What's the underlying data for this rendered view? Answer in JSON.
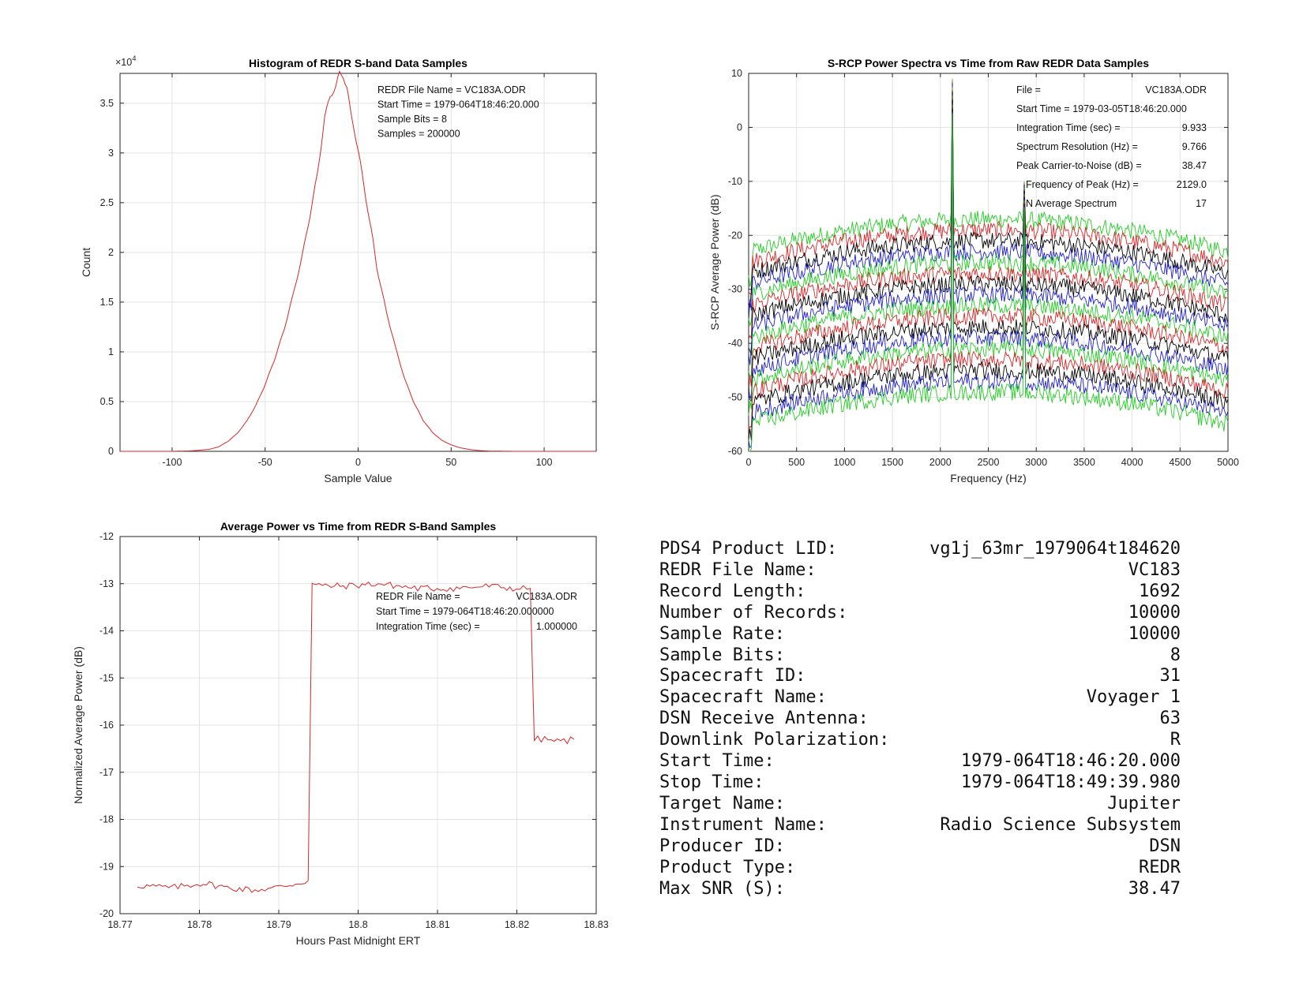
{
  "chart_data": [
    {
      "type": "line",
      "title": "Histogram of REDR S-band Data Samples",
      "xlabel": "Sample Value",
      "ylabel": "Count",
      "y_multiplier_label": "×10",
      "y_multiplier_exp": "4",
      "xlim": [
        -128,
        128
      ],
      "ylim": [
        0,
        38000
      ],
      "x_ticks": [
        -100,
        -50,
        0,
        50,
        100
      ],
      "y_ticks": [
        0,
        5000,
        10000,
        15000,
        20000,
        25000,
        30000,
        35000
      ],
      "y_tick_labels": [
        "0",
        "0.5",
        "1",
        "1.5",
        "2",
        "2.5",
        "3",
        "3.5"
      ],
      "grid": true,
      "series": [
        {
          "color": "#d62728",
          "x": [
            -128,
            -100,
            -90,
            -80,
            -75,
            -70,
            -65,
            -60,
            -55,
            -50,
            -45,
            -40,
            -35,
            -30,
            -25,
            -22,
            -20,
            -18,
            -15,
            -12,
            -10,
            -8,
            -6,
            -4,
            -2,
            0,
            2,
            5,
            8,
            10,
            15,
            20,
            25,
            30,
            35,
            40,
            45,
            50,
            55,
            60,
            65,
            70,
            80,
            90,
            128
          ],
          "y": [
            0,
            0,
            40,
            200,
            450,
            1000,
            1800,
            3000,
            4600,
            6700,
            9200,
            12100,
            15700,
            19700,
            24600,
            27800,
            30600,
            33500,
            35800,
            36600,
            38000,
            37800,
            36500,
            34000,
            32300,
            30300,
            28000,
            24500,
            21200,
            18500,
            14200,
            10500,
            7300,
            4900,
            3100,
            1900,
            1100,
            650,
            350,
            180,
            80,
            30,
            5,
            0,
            0
          ]
        }
      ],
      "annotations": [
        "REDR File Name = VC183A.ODR",
        "Start Time = 1979-064T18:46:20.000",
        "Sample Bits = 8",
        "Samples = 200000"
      ]
    },
    {
      "type": "line",
      "title": "S-RCP Power Spectra vs Time from Raw REDR Data Samples",
      "xlabel": "Frequency (Hz)",
      "ylabel": "S-RCP Average Power (dB)",
      "xlim": [
        0,
        5000
      ],
      "ylim": [
        -60,
        10
      ],
      "x_ticks": [
        0,
        500,
        1000,
        1500,
        2000,
        2500,
        3000,
        3500,
        4000,
        4500,
        5000
      ],
      "y_ticks": [
        -60,
        -50,
        -40,
        -30,
        -20,
        -10,
        0,
        10
      ],
      "grid": true,
      "num_spectra": 17,
      "spectrum_offsets_db": [
        -19,
        -21,
        -23,
        -25,
        -27,
        -29,
        -31,
        -33,
        -35,
        -37,
        -39,
        -41,
        -43,
        -45,
        -47,
        -49,
        -51
      ],
      "spectrum_colors": [
        "#22cc22",
        "#d62728",
        "#000000",
        "#1f1fcc",
        "#22cc22",
        "#d62728",
        "#000000",
        "#1f1fcc",
        "#22cc22",
        "#d62728",
        "#000000",
        "#1f1fcc",
        "#22cc22",
        "#d62728",
        "#000000",
        "#1f1fcc",
        "#22cc22"
      ],
      "carrier_peak_hz": 2129.0,
      "carrier_peak_db": 9,
      "secondary_peak_hz": 2880,
      "secondary_peak_db": -10,
      "annotations": [
        {
          "label": "File =",
          "value": "VC183A.ODR"
        },
        {
          "label": "Start Time = 1979-03-05T18:46:20.000",
          "value": ""
        },
        {
          "label": "Integration Time (sec) =",
          "value": "9.933"
        },
        {
          "label": "Spectrum Resolution (Hz) =",
          "value": "9.766"
        },
        {
          "label": "Peak Carrier-to-Noise (dB) =",
          "value": "38.47"
        },
        {
          "label": "Frequency of Peak (Hz) =",
          "value": "2129.0"
        },
        {
          "label": "N Average Spectrum",
          "value": "17"
        }
      ]
    },
    {
      "type": "line",
      "title": "Average Power vs Time from REDR S-Band Samples",
      "xlabel": "Hours Past Midnight ERT",
      "ylabel": "Normalized Average Power (dB)",
      "xlim": [
        18.77,
        18.83
      ],
      "ylim": [
        -20,
        -12
      ],
      "x_ticks": [
        18.77,
        18.78,
        18.79,
        18.8,
        18.81,
        18.82,
        18.83
      ],
      "y_ticks": [
        -20,
        -19,
        -18,
        -17,
        -16,
        -15,
        -14,
        -13,
        -12
      ],
      "grid": true,
      "series": [
        {
          "color": "#d62728",
          "x": [
            18.7722,
            18.7765,
            18.7805,
            18.7835,
            18.787,
            18.7895,
            18.7925,
            18.7937,
            18.7942,
            18.7955,
            18.7985,
            18.8025,
            18.8075,
            18.812,
            18.8165,
            18.8195,
            18.8217,
            18.8222,
            18.8235,
            18.8255,
            18.8272
          ],
          "y": [
            -19.4,
            -19.45,
            -19.35,
            -19.45,
            -19.5,
            -19.45,
            -19.35,
            -19.3,
            -13.0,
            -13.05,
            -13.05,
            -13.0,
            -13.1,
            -13.1,
            -13.05,
            -13.1,
            -13.1,
            -16.3,
            -16.3,
            -16.35,
            -16.3
          ]
        }
      ],
      "annotations": [
        {
          "label": "REDR File Name =",
          "value": "VC183A.ODR"
        },
        {
          "label": "Start Time = 1979-064T18:46:20.000000",
          "value": ""
        },
        {
          "label": "Integration Time (sec) =",
          "value": "1.000000"
        }
      ]
    }
  ],
  "info_table": [
    {
      "label": "PDS4 Product LID:",
      "value": "vg1j_63mr_1979064t184620"
    },
    {
      "label": "REDR File Name:",
      "value": "VC183"
    },
    {
      "label": "Record Length:",
      "value": "1692"
    },
    {
      "label": "Number of Records:",
      "value": "10000"
    },
    {
      "label": "Sample Rate:",
      "value": "10000"
    },
    {
      "label": "Sample Bits:",
      "value": "8"
    },
    {
      "label": "Spacecraft ID:",
      "value": "31"
    },
    {
      "label": "Spacecraft Name:",
      "value": "Voyager 1"
    },
    {
      "label": "DSN Receive Antenna:",
      "value": "63"
    },
    {
      "label": "Downlink Polarization:",
      "value": "R"
    },
    {
      "label": "Start Time:",
      "value": "1979-064T18:46:20.000"
    },
    {
      "label": "Stop Time:",
      "value": "1979-064T18:49:39.980"
    },
    {
      "label": "Target Name:",
      "value": "Jupiter"
    },
    {
      "label": "Instrument Name:",
      "value": "Radio Science Subsystem"
    },
    {
      "label": "Producer ID:",
      "value": "DSN"
    },
    {
      "label": "Product Type:",
      "value": "REDR"
    },
    {
      "label": "Max SNR (S):",
      "value": "38.47"
    }
  ]
}
